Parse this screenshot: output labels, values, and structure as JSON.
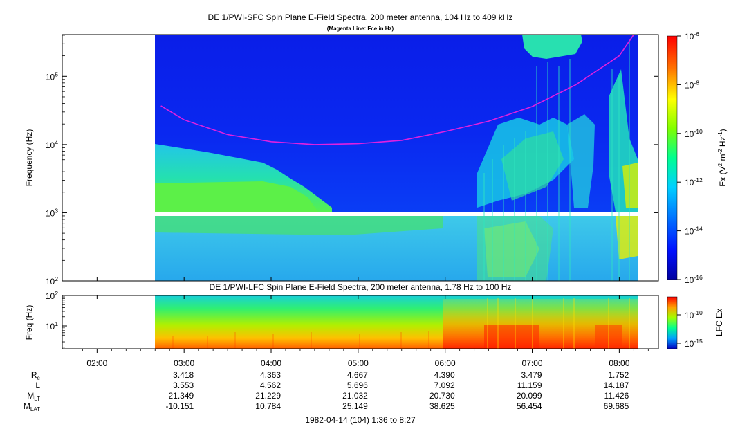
{
  "chart_data": [
    {
      "type": "heatmap",
      "title": "DE 1/PWI-SFC  Spin Plane E-Field Spectra, 200 meter antenna, 104 Hz to 409 kHz",
      "subtitle": "(Magenta Line: Fce in Hz)",
      "ylabel": "Frequency (Hz)",
      "yscale": "log",
      "ylim": [
        100,
        409000
      ],
      "y_ticks": [
        {
          "value": 100,
          "base": "10",
          "exp": "2"
        },
        {
          "value": 1000,
          "base": "10",
          "exp": "3"
        },
        {
          "value": 10000,
          "base": "10",
          "exp": "4"
        },
        {
          "value": 100000,
          "base": "10",
          "exp": "5"
        }
      ],
      "colorbar": {
        "label_pre": "Ex (V",
        "label_sup1": "2",
        "label_mid": " m",
        "label_sup2": "-2",
        "label_post": " Hz",
        "label_sup3": "-1",
        "label_end": ")",
        "scale": "log",
        "range": [
          1e-16,
          1e-06
        ],
        "ticks": [
          {
            "value": 1e-06,
            "base": "10",
            "exp": "-6"
          },
          {
            "value": 1e-08,
            "base": "10",
            "exp": "-8"
          },
          {
            "value": 1e-10,
            "base": "10",
            "exp": "-10"
          },
          {
            "value": 1e-12,
            "base": "10",
            "exp": "-12"
          },
          {
            "value": 1e-14,
            "base": "10",
            "exp": "-14"
          },
          {
            "value": 1e-16,
            "base": "10",
            "exp": "-16"
          }
        ]
      },
      "fce_line": {
        "color": "#e020e0",
        "x": [
          "02:44",
          "03:00",
          "03:30",
          "04:00",
          "04:30",
          "05:00",
          "05:30",
          "06:00",
          "06:30",
          "07:00",
          "07:30",
          "08:00",
          "08:10"
        ],
        "y": [
          37000,
          23000,
          14000,
          11000,
          10000,
          10300,
          11500,
          15500,
          22000,
          36000,
          75000,
          200000,
          409000
        ]
      },
      "data_start": "02:44",
      "data_end": "08:27",
      "gap_band_hz": [
        900,
        1050
      ]
    },
    {
      "type": "heatmap",
      "title": "DE 1/PWI-LFC  Spin Plane E-Field Spectra, 200 meter antenna, 1.78 Hz to 100 Hz",
      "ylabel": "Freq (Hz)",
      "yscale": "log",
      "ylim": [
        1.78,
        100
      ],
      "y_ticks": [
        {
          "value": 100,
          "base": "10",
          "exp": "2"
        },
        {
          "value": 10,
          "base": "10",
          "exp": "1"
        }
      ],
      "colorbar": {
        "label": "LFC Ex",
        "scale": "log",
        "ticks": [
          {
            "value": 1e-10,
            "base": "10",
            "exp": "-10"
          },
          {
            "value": 1e-15,
            "base": "10",
            "exp": "-15"
          }
        ]
      },
      "data_start": "02:44",
      "data_end": "08:27"
    }
  ],
  "time_axis": {
    "tick_labels": [
      "02:00",
      "03:00",
      "04:00",
      "05:00",
      "06:00",
      "07:00",
      "08:00"
    ],
    "xlim": [
      "01:36",
      "08:27"
    ]
  },
  "ephemeris": {
    "rows": [
      {
        "label": "R",
        "sub": "e",
        "values": [
          "3.418",
          "4.363",
          "4.667",
          "4.390",
          "3.479",
          "1.752"
        ]
      },
      {
        "label": "L",
        "sub": "",
        "values": [
          "3.553",
          "4.562",
          "5.696",
          "7.092",
          "11.159",
          "14.187"
        ]
      },
      {
        "label": "M",
        "sub": "LT",
        "values": [
          "21.349",
          "21.229",
          "21.032",
          "20.730",
          "20.099",
          "11.426"
        ]
      },
      {
        "label": "M",
        "sub": "LAT",
        "values": [
          "-10.151",
          "10.784",
          "25.149",
          "38.625",
          "56.454",
          "69.685"
        ]
      }
    ]
  },
  "footer": "1982-04-14 (104) 1:36 to 8:27"
}
